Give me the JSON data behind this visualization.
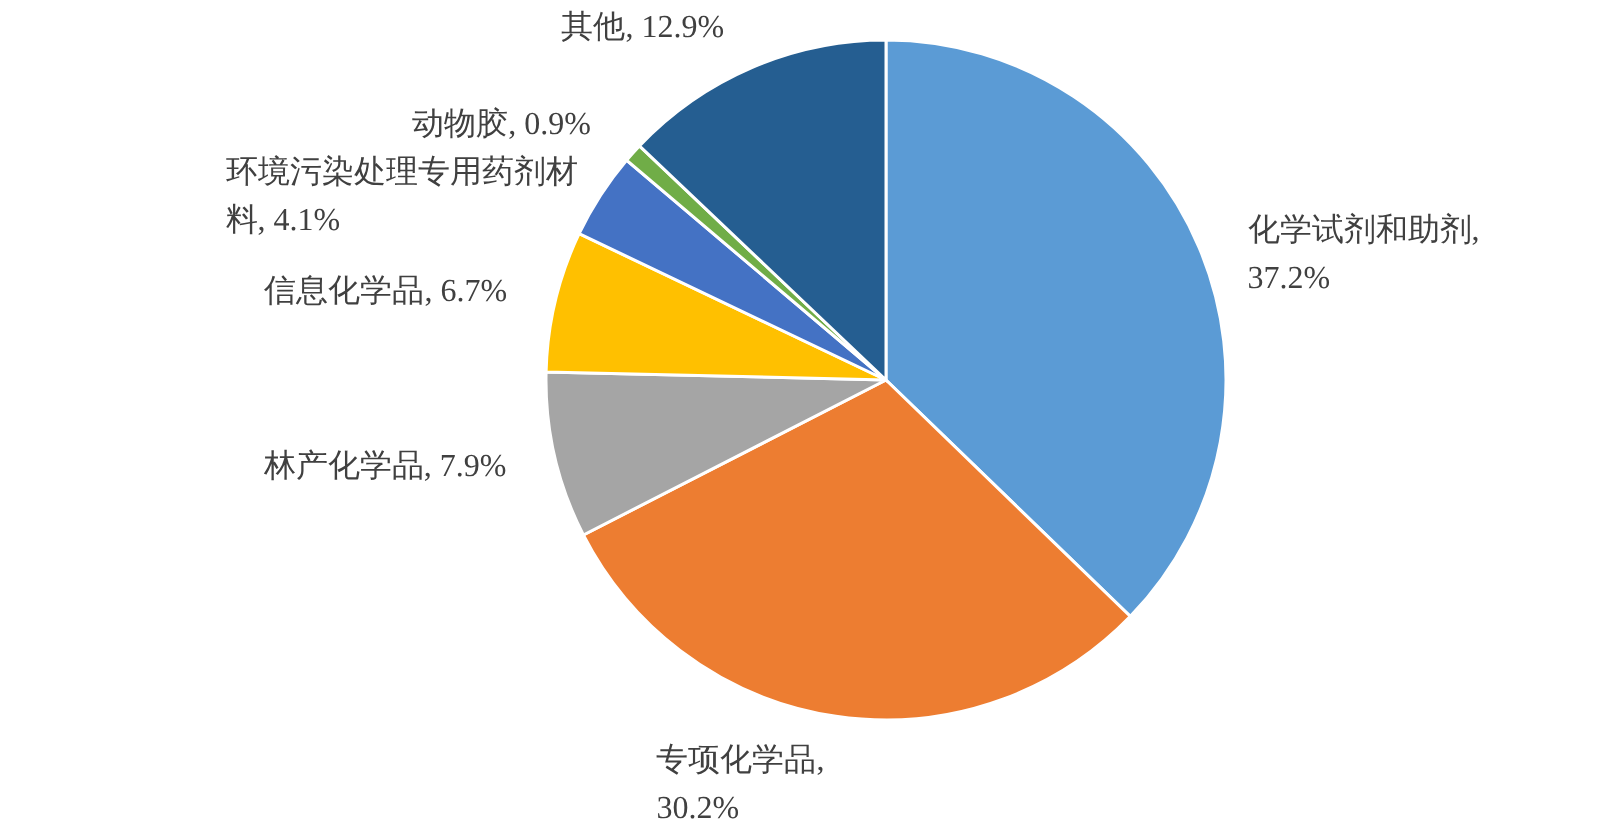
{
  "chart_data": {
    "type": "pie",
    "categories": [
      "化学试剂和助剂",
      "专项化学品",
      "林产化学品",
      "信息化学品",
      "环境污染处理专用药剂材料",
      "动物胶",
      "其他"
    ],
    "values": [
      37.2,
      30.2,
      7.9,
      6.7,
      4.1,
      0.9,
      12.9
    ],
    "colors": [
      "#5b9bd5",
      "#ed7d31",
      "#a5a5a5",
      "#ffc000",
      "#4472c4",
      "#70ad47",
      "#255e91"
    ],
    "value_labels": [
      ", 37.2%",
      ", 30.2%",
      ", 7.9%",
      ", 6.7%",
      ", 4.1%",
      ", 0.9%",
      ", 12.9%"
    ]
  }
}
